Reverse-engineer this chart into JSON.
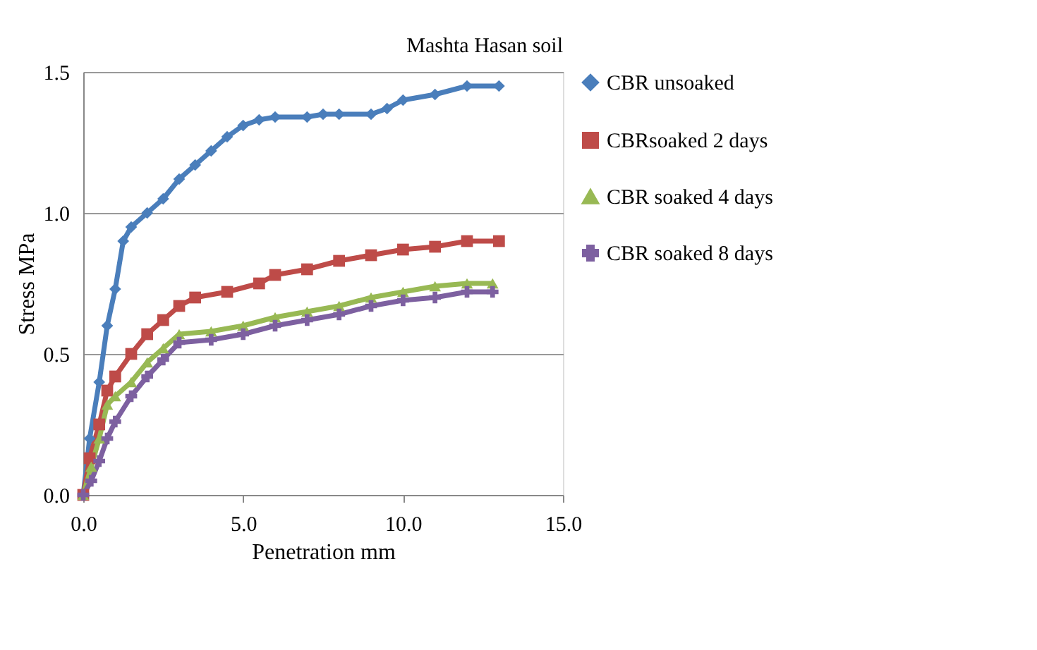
{
  "chart_data": {
    "type": "line",
    "title": "Mashta Hasan soil",
    "xlabel": "Penetration mm",
    "ylabel": "Stress MPa",
    "xlim": [
      0,
      15
    ],
    "xticks": [
      {
        "value": 0,
        "label": "0.0"
      },
      {
        "value": 5,
        "label": "5.0"
      },
      {
        "value": 10,
        "label": "10.0"
      },
      {
        "value": 15,
        "label": "15.0"
      }
    ],
    "ylim": [
      0,
      1.5
    ],
    "yticks": [
      {
        "value": 0,
        "label": "0.0"
      },
      0.5,
      {
        "value": 1,
        "label": "1.0"
      },
      1.5
    ],
    "grid": "y",
    "legend": "right",
    "line_style": "solid",
    "series": [
      {
        "name": "CBR unsoaked",
        "color": "#4a7ebb",
        "marker": "diamond",
        "x": [
          0,
          0.2,
          0.5,
          0.75,
          1,
          1.25,
          1.5,
          2,
          2.5,
          3,
          3.5,
          4,
          4.5,
          5,
          5.5,
          6,
          7,
          7.5,
          8,
          9,
          9.5,
          10,
          11,
          12,
          13
        ],
        "values": [
          0,
          0.2,
          0.4,
          0.6,
          0.73,
          0.9,
          0.95,
          1.0,
          1.05,
          1.12,
          1.17,
          1.22,
          1.27,
          1.31,
          1.33,
          1.34,
          1.34,
          1.35,
          1.35,
          1.35,
          1.37,
          1.4,
          1.42,
          1.45,
          1.45
        ]
      },
      {
        "name": "CBRsoaked 2 days",
        "color": "#be4b48",
        "marker": "square",
        "x": [
          0,
          0.2,
          0.5,
          0.75,
          1,
          1.5,
          2,
          2.5,
          3,
          3.5,
          4.5,
          5.5,
          6,
          7,
          8,
          9,
          10,
          11,
          12,
          13
        ],
        "values": [
          0,
          0.13,
          0.25,
          0.37,
          0.42,
          0.5,
          0.57,
          0.62,
          0.67,
          0.7,
          0.72,
          0.75,
          0.78,
          0.8,
          0.83,
          0.85,
          0.87,
          0.88,
          0.9,
          0.9
        ]
      },
      {
        "name": "CBR soaked 4 days",
        "color": "#98b954",
        "marker": "triangle",
        "x": [
          0,
          0.25,
          0.5,
          0.75,
          1,
          1.5,
          2,
          2.5,
          3,
          4,
          5,
          6,
          7,
          8,
          9,
          10,
          11,
          12,
          12.8
        ],
        "values": [
          0,
          0.1,
          0.2,
          0.32,
          0.35,
          0.4,
          0.47,
          0.52,
          0.57,
          0.58,
          0.6,
          0.63,
          0.65,
          0.67,
          0.7,
          0.72,
          0.74,
          0.75,
          0.75
        ]
      },
      {
        "name": "CBR soaked 8 days",
        "color": "#7d60a0",
        "marker": "cross",
        "x": [
          0,
          0.25,
          0.5,
          0.75,
          1,
          1.5,
          2,
          2.5,
          3,
          4,
          5,
          6,
          7,
          8,
          9,
          10,
          11,
          12,
          12.8
        ],
        "values": [
          0,
          0.05,
          0.12,
          0.2,
          0.26,
          0.35,
          0.42,
          0.48,
          0.54,
          0.55,
          0.57,
          0.6,
          0.62,
          0.64,
          0.67,
          0.69,
          0.7,
          0.72,
          0.72
        ]
      }
    ]
  }
}
